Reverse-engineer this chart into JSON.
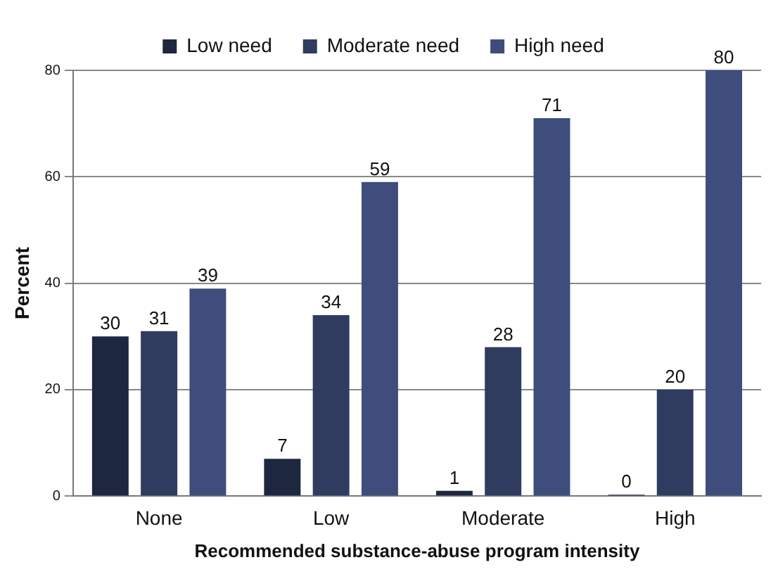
{
  "chart_data": {
    "type": "bar",
    "xlabel": "Recommended substance-abuse program intensity",
    "ylabel": "Percent",
    "categories": [
      "None",
      "Low",
      "Moderate",
      "High"
    ],
    "series": [
      {
        "name": "Low need",
        "color": "#1e2740",
        "values": [
          30,
          7,
          1,
          0
        ]
      },
      {
        "name": "Moderate need",
        "color": "#2f3c60",
        "values": [
          31,
          34,
          28,
          20
        ]
      },
      {
        "name": "High need",
        "color": "#3e4d7c",
        "values": [
          39,
          59,
          71,
          80
        ]
      }
    ],
    "ylim": [
      0,
      80
    ],
    "yticks": [
      0,
      20,
      40,
      60,
      80
    ],
    "grid": "y",
    "legend": "top",
    "data_labels": true
  }
}
